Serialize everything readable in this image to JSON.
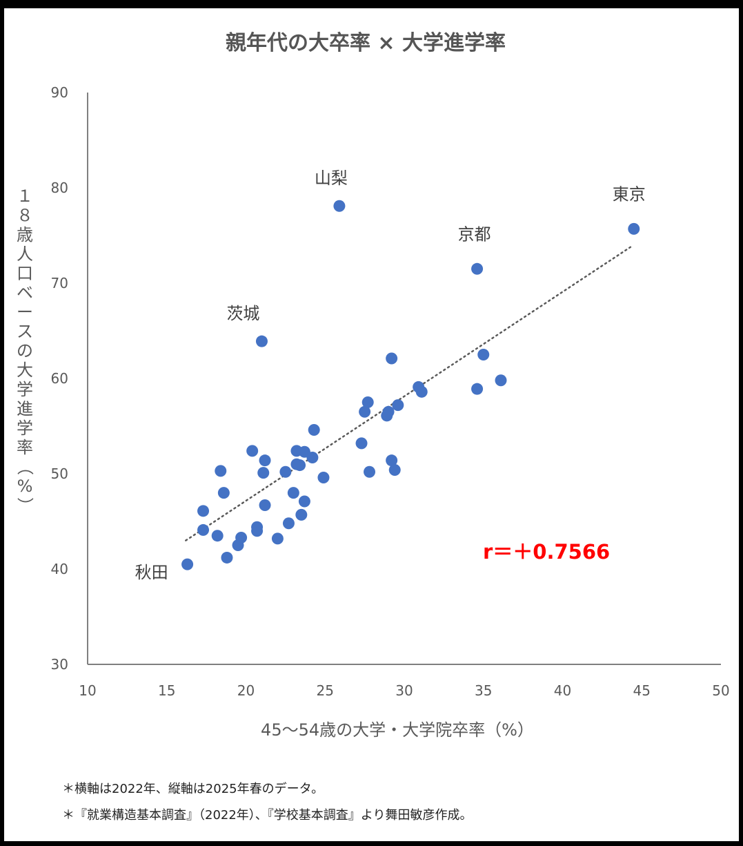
{
  "colors": {
    "point": "#4472C4",
    "axis": "#7f7f7f",
    "trend": "#595959",
    "correlation": "#ff0000"
  },
  "chart_data": {
    "type": "scatter",
    "title": "親年代の大卒率 × 大学進学率",
    "xlabel": "45～54歳の大学・大学院卒率（%）",
    "ylabel": "１８歳人口ベースの大学進学率（%）",
    "xlim": [
      10,
      50
    ],
    "ylim": [
      30,
      90
    ],
    "xticks": [
      10,
      15,
      20,
      25,
      30,
      35,
      40,
      45,
      50
    ],
    "yticks": [
      30,
      40,
      50,
      60,
      70,
      80,
      90
    ],
    "grid": false,
    "correlation_label": "r＝＋0.7566",
    "trendline": {
      "style": "dotted",
      "x": [
        16.2,
        44.3
      ],
      "y": [
        43.0,
        73.8
      ]
    },
    "points": [
      {
        "x": 16.3,
        "y": 40.5,
        "label": "秋田"
      },
      {
        "x": 17.3,
        "y": 46.1
      },
      {
        "x": 17.3,
        "y": 44.1
      },
      {
        "x": 18.2,
        "y": 43.5
      },
      {
        "x": 18.4,
        "y": 50.3
      },
      {
        "x": 18.6,
        "y": 48.0
      },
      {
        "x": 18.8,
        "y": 41.2
      },
      {
        "x": 19.5,
        "y": 42.5
      },
      {
        "x": 19.7,
        "y": 43.3
      },
      {
        "x": 20.4,
        "y": 52.4
      },
      {
        "x": 20.7,
        "y": 44.0
      },
      {
        "x": 20.7,
        "y": 44.4
      },
      {
        "x": 21.0,
        "y": 63.9,
        "label": "茨城"
      },
      {
        "x": 21.1,
        "y": 50.1
      },
      {
        "x": 21.2,
        "y": 51.4
      },
      {
        "x": 21.2,
        "y": 46.7
      },
      {
        "x": 22.0,
        "y": 43.2
      },
      {
        "x": 22.5,
        "y": 50.2
      },
      {
        "x": 22.7,
        "y": 44.8
      },
      {
        "x": 23.0,
        "y": 48.0
      },
      {
        "x": 23.2,
        "y": 52.4
      },
      {
        "x": 23.2,
        "y": 51.0
      },
      {
        "x": 23.4,
        "y": 50.9
      },
      {
        "x": 23.5,
        "y": 45.7
      },
      {
        "x": 23.7,
        "y": 52.3
      },
      {
        "x": 23.7,
        "y": 47.1
      },
      {
        "x": 24.2,
        "y": 51.7
      },
      {
        "x": 24.3,
        "y": 54.6
      },
      {
        "x": 24.9,
        "y": 49.6
      },
      {
        "x": 25.9,
        "y": 78.1,
        "label": "山梨"
      },
      {
        "x": 27.3,
        "y": 53.2
      },
      {
        "x": 27.5,
        "y": 56.5
      },
      {
        "x": 27.7,
        "y": 57.5
      },
      {
        "x": 27.8,
        "y": 50.2
      },
      {
        "x": 28.9,
        "y": 56.1
      },
      {
        "x": 29.0,
        "y": 56.5
      },
      {
        "x": 29.2,
        "y": 62.1
      },
      {
        "x": 29.2,
        "y": 51.4
      },
      {
        "x": 29.4,
        "y": 50.4
      },
      {
        "x": 29.6,
        "y": 57.2
      },
      {
        "x": 30.9,
        "y": 59.1
      },
      {
        "x": 31.1,
        "y": 58.6
      },
      {
        "x": 34.6,
        "y": 71.5,
        "label": "京都"
      },
      {
        "x": 34.6,
        "y": 58.9
      },
      {
        "x": 35.0,
        "y": 62.5
      },
      {
        "x": 36.1,
        "y": 59.8
      },
      {
        "x": 44.5,
        "y": 75.7,
        "label": "東京"
      }
    ]
  },
  "notes": [
    "＊横軸は2022年、縦軸は2025年春のデータ。",
    "＊『就業構造基本調査』（2022年）、『学校基本調査』より舞田敏彦作成。"
  ]
}
